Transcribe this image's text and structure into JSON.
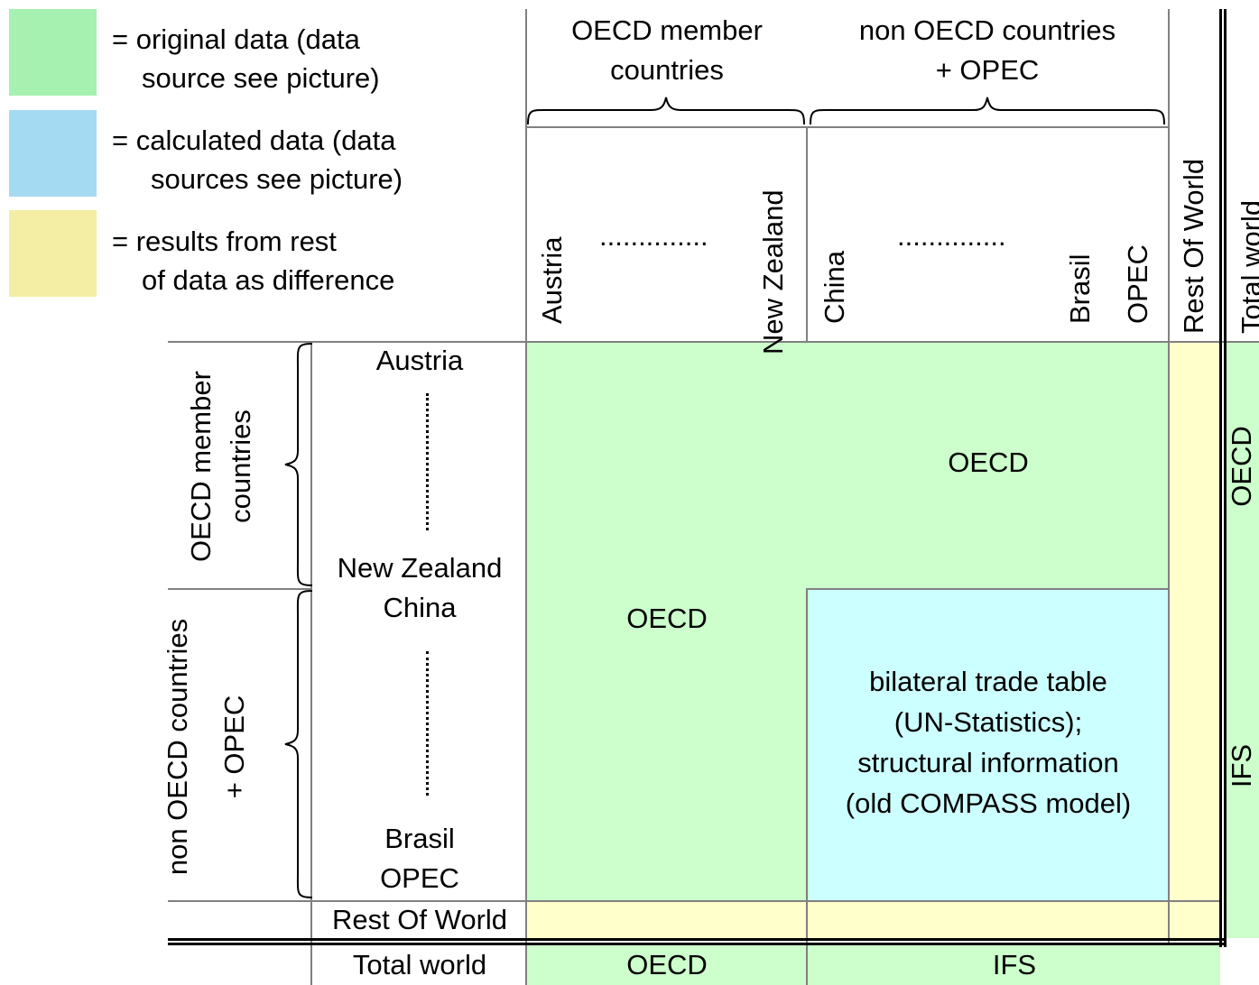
{
  "legend": {
    "items": [
      {
        "color": "#a6f0b0",
        "line1": "= original data (data",
        "line2": "source see picture)"
      },
      {
        "color": "#a5daf3",
        "line1": "= calculated data (data",
        "line2": "sources see picture)"
      },
      {
        "color": "#f3eea4",
        "line1": "= results from rest",
        "line2": "of data as difference"
      }
    ]
  },
  "colors": {
    "green": "#ccffcc",
    "blue": "#ccffff",
    "yellow": "#ffffcc",
    "grid": "#808080"
  },
  "header": {
    "oecd_group": {
      "line1": "OECD member",
      "line2": "countries"
    },
    "nonoecd_group": {
      "line1": "non OECD countries",
      "line2": "+ OPEC"
    },
    "cols": {
      "austria": "Austria",
      "dots1": "..............",
      "new_zealand": "New Zealand",
      "china": "China",
      "dots2": "..............",
      "brasil": "Brasil",
      "opec": "OPEC",
      "rest": "Rest Of World",
      "total": "Total world"
    }
  },
  "rows": {
    "oecd_group": {
      "line1": "OECD member",
      "line2": "countries"
    },
    "nonoecd_group": {
      "line1": "non OECD countries",
      "line2": "+ OPEC"
    },
    "austria": "Austria",
    "new_zealand": "New Zealand",
    "china": "China",
    "brasil": "Brasil",
    "opec": "OPEC",
    "rest": "Rest Of World",
    "total": "Total world"
  },
  "cells": {
    "oecd_top": "OECD",
    "oecd_left": "OECD",
    "bilateral": {
      "line1": "bilateral trade table",
      "line2": "(UN-Statistics);",
      "line3": "structural information",
      "line4": "(old COMPASS model)"
    },
    "right_oecd": "OECD",
    "right_ifs": "IFS",
    "bottom_oecd": "OECD",
    "bottom_ifs": "IFS"
  }
}
